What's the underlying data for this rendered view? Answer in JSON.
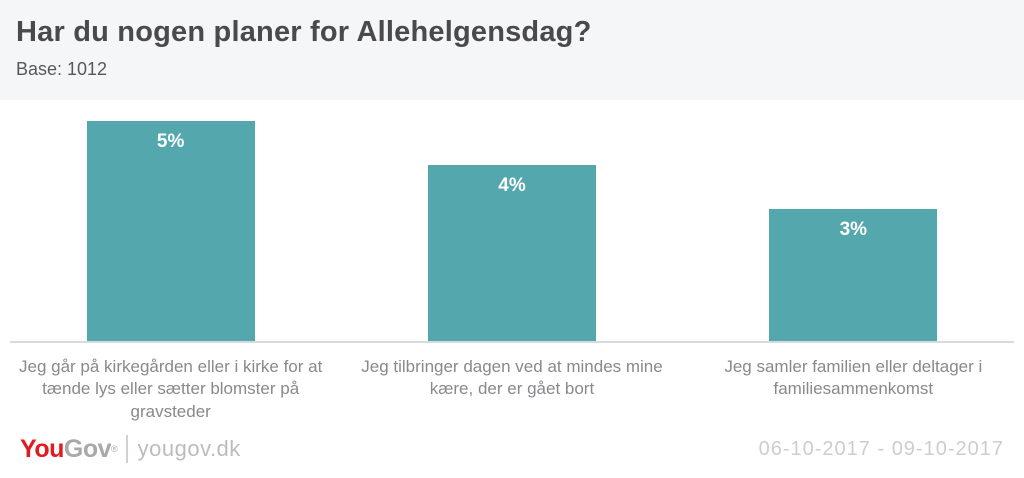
{
  "header": {
    "title": "Har du nogen planer for Allehelgensdag?",
    "base_label": "Base: 1012"
  },
  "chart_data": {
    "type": "bar",
    "title": "Har du nogen planer for Allehelgensdag?",
    "base": 1012,
    "categories": [
      "Jeg går på kirkegården eller i kirke for at tænde lys eller sætter blomster på gravsteder",
      "Jeg tilbringer dagen ved at mindes mine kære, der er gået bort",
      "Jeg samler familien eller deltager i familiesammenkomst"
    ],
    "values": [
      5,
      4,
      3
    ],
    "value_labels": [
      "5%",
      "4%",
      "3%"
    ],
    "unit": "%",
    "xlabel": "",
    "ylabel": "",
    "ylim": [
      0,
      5.5
    ],
    "grid": false,
    "legend": false,
    "bar_color": "#54a8ad",
    "value_label_color": "#ffffff",
    "axis_line_color": "#d9dadb",
    "category_label_color": "#87898c"
  },
  "footer": {
    "logo": {
      "you": "You",
      "gov": "Gov",
      "registered_mark": "®"
    },
    "logo_red": "#e01b22",
    "logo_gray": "#a7a9ab",
    "site": "yougov.dk",
    "date_range": "06-10-2017 - 09-10-2017"
  }
}
